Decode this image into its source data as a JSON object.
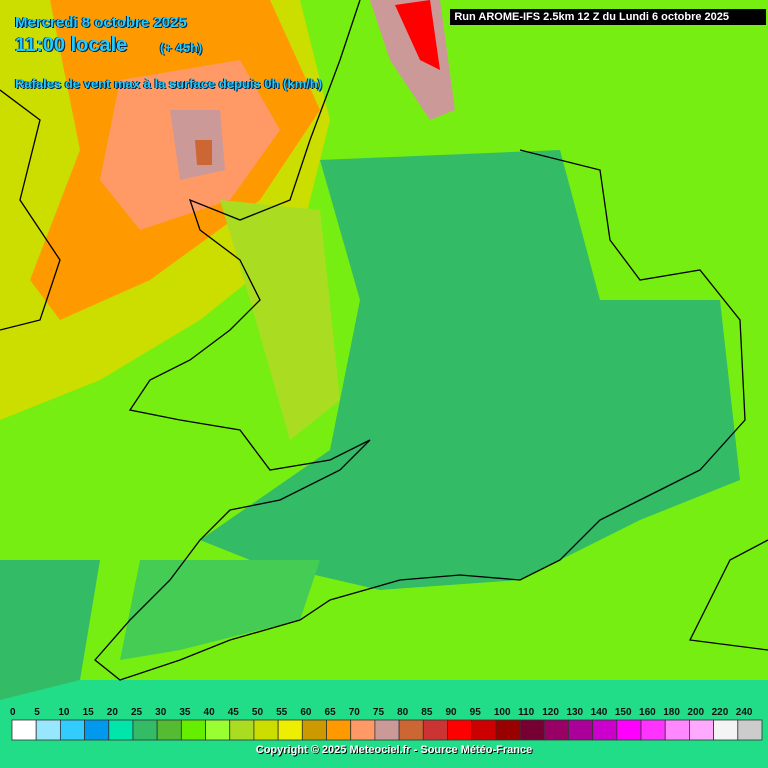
{
  "header": {
    "date": "Mercredi 8 octobre 2025",
    "time": "11:00 locale",
    "lead": "(+ 45h)",
    "parameter": "Rafales de vent max à la surface depuis 0h (km/h)",
    "run": "Run AROME-IFS 2.5km 12 Z du Lundi 6 octobre 2025"
  },
  "legend": {
    "items": [
      {
        "value": 0,
        "color": "#ffffff"
      },
      {
        "value": 5,
        "color": "#99e6ff"
      },
      {
        "value": 10,
        "color": "#33ccff"
      },
      {
        "value": 15,
        "color": "#0099ee"
      },
      {
        "value": 20,
        "color": "#00e6aa"
      },
      {
        "value": 25,
        "color": "#33bb66"
      },
      {
        "value": 30,
        "color": "#55bb33"
      },
      {
        "value": 35,
        "color": "#66ee00"
      },
      {
        "value": 40,
        "color": "#99ff33"
      },
      {
        "value": 45,
        "color": "#aadd22"
      },
      {
        "value": 50,
        "color": "#ccdd00"
      },
      {
        "value": 55,
        "color": "#eeee00"
      },
      {
        "value": 60,
        "color": "#cc9900"
      },
      {
        "value": 65,
        "color": "#ff9900"
      },
      {
        "value": 70,
        "color": "#ff9966"
      },
      {
        "value": 75,
        "color": "#cc9999"
      },
      {
        "value": 80,
        "color": "#cc6633"
      },
      {
        "value": 85,
        "color": "#cc3333"
      },
      {
        "value": 90,
        "color": "#ff0000"
      },
      {
        "value": 95,
        "color": "#cc0000"
      },
      {
        "value": 100,
        "color": "#990000"
      },
      {
        "value": 110,
        "color": "#770033"
      },
      {
        "value": 120,
        "color": "#990066"
      },
      {
        "value": 130,
        "color": "#aa0099"
      },
      {
        "value": 140,
        "color": "#cc00cc"
      },
      {
        "value": 150,
        "color": "#ff00ff"
      },
      {
        "value": 160,
        "color": "#ff33ff"
      },
      {
        "value": 180,
        "color": "#ff88ff"
      },
      {
        "value": 200,
        "color": "#ffaaff"
      },
      {
        "value": 220,
        "color": "#f4f4f4"
      },
      {
        "value": 240,
        "color": "#cccccc"
      }
    ]
  },
  "footer": {
    "copyright": "Copyright © 2025 Meteociel.fr - Source Météo-France"
  }
}
